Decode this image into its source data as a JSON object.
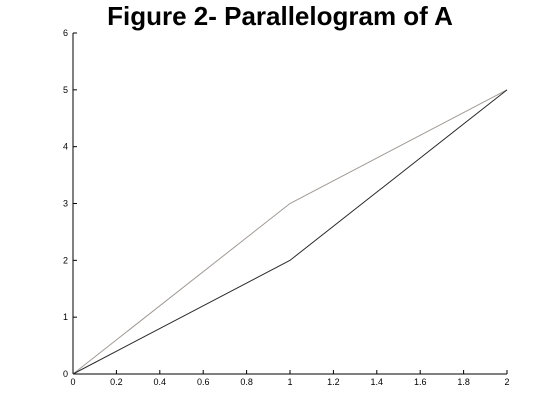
{
  "chart_data": {
    "type": "line",
    "title": "Figure 2- Parallelogram of A",
    "xlabel": "",
    "ylabel": "",
    "xlim": [
      0,
      2
    ],
    "ylim": [
      0,
      6
    ],
    "grid": false,
    "legend": "none",
    "x_ticks": [
      0,
      0.2,
      0.4,
      0.6,
      0.8,
      1,
      1.2,
      1.4,
      1.6,
      1.8,
      2
    ],
    "x_tick_labels": [
      "0",
      "0.2",
      "0.4",
      "0.6",
      "0.8",
      "1",
      "1.2",
      "1.4",
      "1.6",
      "1.8",
      "2"
    ],
    "y_ticks": [
      0,
      1,
      2,
      3,
      4,
      5,
      6
    ],
    "y_tick_labels": [
      "0",
      "1",
      "2",
      "3",
      "4",
      "5",
      "6"
    ],
    "series": [
      {
        "color": "#a09a96",
        "x": [
          0,
          1,
          2
        ],
        "y": [
          0,
          3,
          5
        ]
      },
      {
        "color": "#2a2a2a",
        "x": [
          0,
          1,
          2
        ],
        "y": [
          0,
          2,
          5
        ]
      }
    ]
  }
}
